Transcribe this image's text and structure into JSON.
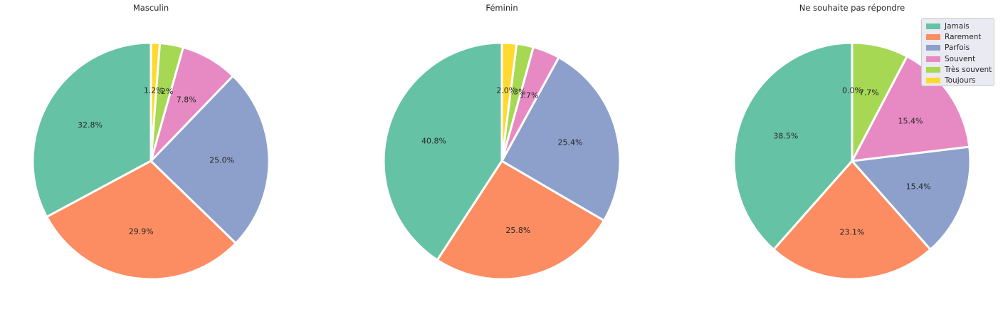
{
  "chart_data": [
    {
      "type": "pie",
      "title": "Masculin",
      "categories": [
        "Jamais",
        "Rarement",
        "Parfois",
        "Souvent",
        "Très souvent",
        "Toujours"
      ],
      "values": [
        32.8,
        29.9,
        25.0,
        7.8,
        3.2,
        1.2
      ],
      "labels": [
        "32.8%",
        "29.9%",
        "25.0%",
        "7.8%",
        "3.2%",
        "1.2%"
      ],
      "start_angle_deg": 90,
      "direction": "counterclockwise"
    },
    {
      "type": "pie",
      "title": "Féminin",
      "categories": [
        "Jamais",
        "Rarement",
        "Parfois",
        "Souvent",
        "Très souvent",
        "Toujours"
      ],
      "values": [
        40.8,
        25.8,
        25.4,
        3.7,
        2.3,
        2.0
      ],
      "labels": [
        "40.8%",
        "25.8%",
        "25.4%",
        "3.7%",
        "2.3%",
        "2.0%"
      ],
      "start_angle_deg": 90,
      "direction": "counterclockwise"
    },
    {
      "type": "pie",
      "title": "Ne souhaite pas répondre",
      "categories": [
        "Jamais",
        "Rarement",
        "Parfois",
        "Souvent",
        "Très souvent",
        "Toujours"
      ],
      "values": [
        38.5,
        23.1,
        15.4,
        15.4,
        7.7,
        0.0
      ],
      "labels": [
        "38.5%",
        "23.1%",
        "15.4%",
        "15.4%",
        "7.7%",
        "0.0%"
      ],
      "start_angle_deg": 90,
      "direction": "counterclockwise"
    }
  ],
  "legend": {
    "placement": "top-right",
    "items": [
      {
        "label": "Jamais",
        "color": "#66c2a5"
      },
      {
        "label": "Rarement",
        "color": "#fc8d62"
      },
      {
        "label": "Parfois",
        "color": "#8da0cb"
      },
      {
        "label": "Souvent",
        "color": "#e78ac3"
      },
      {
        "label": "Très souvent",
        "color": "#a6d854"
      },
      {
        "label": "Toujours",
        "color": "#ffd92f"
      }
    ]
  }
}
